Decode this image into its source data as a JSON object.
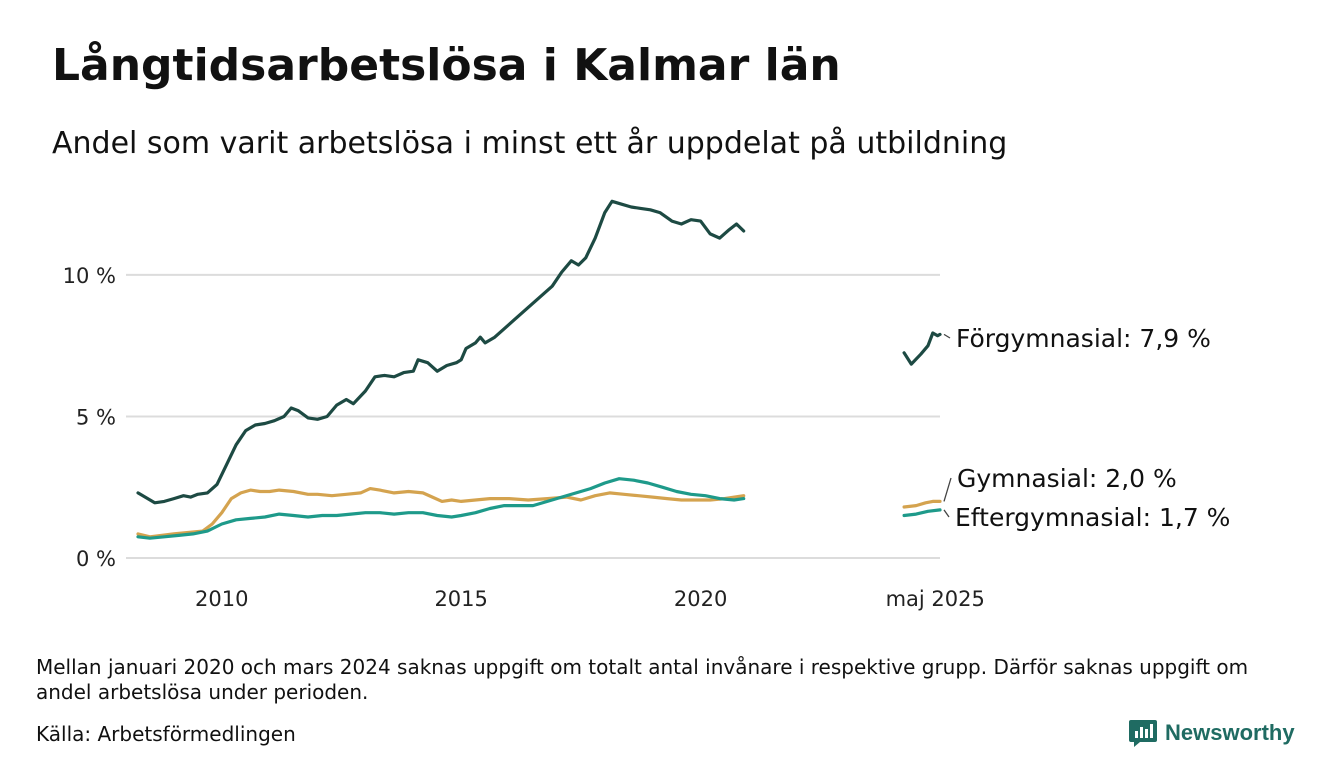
{
  "title": "Långtidsarbetslösa i Kalmar län",
  "subtitle": "Andel som varit arbetslösa i minst ett år uppdelat på utbildning",
  "note": "Mellan januari 2020 och mars 2024 saknas uppgift om totalt antal invånare i respektive grupp. Därför saknas uppgift om andel arbetslösa under perioden.",
  "source": "Källa: Arbetsförmedlingen",
  "brand": {
    "name": "Newsworthy",
    "icon": "bar-chart-speech-bubble-icon",
    "color": "#1f6b62"
  },
  "chart_data": {
    "type": "line",
    "y_ticks": [
      {
        "value": 0,
        "label": "0 %"
      },
      {
        "value": 5,
        "label": "5 %"
      },
      {
        "value": 10,
        "label": "10 %"
      }
    ],
    "x_ticks": [
      {
        "value": 2010,
        "label": "2010"
      },
      {
        "value": 2015,
        "label": "2015"
      },
      {
        "value": 2020,
        "label": "2020"
      },
      {
        "value": 2024.9,
        "label": "maj 2025"
      }
    ],
    "x_range": [
      2008.0,
      2025.0
    ],
    "y_range": [
      0,
      13
    ],
    "grid": "horizontal",
    "legend": "direct-labels-right",
    "series": [
      {
        "key": "forgymnasial",
        "label": "Förgymnasial: 7,9 %",
        "color": "#1d4a43",
        "segments": [
          [
            [
              2008.25,
              2.3
            ],
            [
              2008.4,
              2.15
            ],
            [
              2008.6,
              1.95
            ],
            [
              2008.8,
              2.0
            ],
            [
              2009.0,
              2.1
            ],
            [
              2009.2,
              2.2
            ],
            [
              2009.35,
              2.15
            ],
            [
              2009.5,
              2.25
            ],
            [
              2009.7,
              2.3
            ],
            [
              2009.9,
              2.6
            ],
            [
              2010.1,
              3.3
            ],
            [
              2010.3,
              4.0
            ],
            [
              2010.5,
              4.5
            ],
            [
              2010.7,
              4.7
            ],
            [
              2010.9,
              4.75
            ],
            [
              2011.1,
              4.85
            ],
            [
              2011.3,
              5.0
            ],
            [
              2011.45,
              5.3
            ],
            [
              2011.6,
              5.2
            ],
            [
              2011.8,
              4.95
            ],
            [
              2012.0,
              4.9
            ],
            [
              2012.2,
              5.0
            ],
            [
              2012.4,
              5.4
            ],
            [
              2012.6,
              5.6
            ],
            [
              2012.75,
              5.45
            ],
            [
              2013.0,
              5.9
            ],
            [
              2013.2,
              6.4
            ],
            [
              2013.4,
              6.45
            ],
            [
              2013.6,
              6.4
            ],
            [
              2013.8,
              6.55
            ],
            [
              2014.0,
              6.6
            ],
            [
              2014.1,
              7.0
            ],
            [
              2014.3,
              6.9
            ],
            [
              2014.5,
              6.6
            ],
            [
              2014.7,
              6.8
            ],
            [
              2014.9,
              6.9
            ],
            [
              2015.0,
              7.0
            ],
            [
              2015.1,
              7.4
            ],
            [
              2015.3,
              7.6
            ],
            [
              2015.4,
              7.8
            ],
            [
              2015.5,
              7.6
            ],
            [
              2015.7,
              7.8
            ],
            [
              2015.9,
              8.1
            ],
            [
              2016.1,
              8.4
            ],
            [
              2016.3,
              8.7
            ],
            [
              2016.5,
              9.0
            ],
            [
              2016.7,
              9.3
            ],
            [
              2016.9,
              9.6
            ],
            [
              2017.1,
              10.1
            ],
            [
              2017.3,
              10.5
            ],
            [
              2017.45,
              10.35
            ],
            [
              2017.6,
              10.6
            ],
            [
              2017.8,
              11.3
            ],
            [
              2018.0,
              12.2
            ],
            [
              2018.15,
              12.6
            ],
            [
              2018.35,
              12.5
            ],
            [
              2018.55,
              12.4
            ],
            [
              2018.75,
              12.35
            ],
            [
              2018.95,
              12.3
            ],
            [
              2019.15,
              12.2
            ],
            [
              2019.4,
              11.9
            ],
            [
              2019.6,
              11.8
            ],
            [
              2019.8,
              11.95
            ],
            [
              2020.0,
              11.9
            ],
            [
              2020.2,
              11.45
            ],
            [
              2020.4,
              11.3
            ],
            [
              2020.6,
              11.6
            ],
            [
              2020.75,
              11.8
            ],
            [
              2020.9,
              11.55
            ]
          ],
          [
            [
              2024.25,
              7.25
            ],
            [
              2024.4,
              6.85
            ],
            [
              2024.6,
              7.2
            ],
            [
              2024.75,
              7.5
            ],
            [
              2024.85,
              7.95
            ],
            [
              2024.95,
              7.85
            ],
            [
              2025.0,
              7.9
            ]
          ]
        ]
      },
      {
        "key": "gymnasial",
        "label": "Gymnasial: 2,0 %",
        "color": "#d4a34f",
        "segments": [
          [
            [
              2008.25,
              0.85
            ],
            [
              2008.5,
              0.75
            ],
            [
              2008.75,
              0.8
            ],
            [
              2009.0,
              0.85
            ],
            [
              2009.3,
              0.9
            ],
            [
              2009.6,
              0.95
            ],
            [
              2009.8,
              1.2
            ],
            [
              2010.0,
              1.6
            ],
            [
              2010.2,
              2.1
            ],
            [
              2010.4,
              2.3
            ],
            [
              2010.6,
              2.4
            ],
            [
              2010.8,
              2.35
            ],
            [
              2011.0,
              2.35
            ],
            [
              2011.2,
              2.4
            ],
            [
              2011.5,
              2.35
            ],
            [
              2011.8,
              2.25
            ],
            [
              2012.0,
              2.25
            ],
            [
              2012.3,
              2.2
            ],
            [
              2012.6,
              2.25
            ],
            [
              2012.9,
              2.3
            ],
            [
              2013.1,
              2.45
            ],
            [
              2013.3,
              2.4
            ],
            [
              2013.6,
              2.3
            ],
            [
              2013.9,
              2.35
            ],
            [
              2014.2,
              2.3
            ],
            [
              2014.4,
              2.15
            ],
            [
              2014.6,
              2.0
            ],
            [
              2014.8,
              2.05
            ],
            [
              2015.0,
              2.0
            ],
            [
              2015.3,
              2.05
            ],
            [
              2015.6,
              2.1
            ],
            [
              2016.0,
              2.1
            ],
            [
              2016.4,
              2.05
            ],
            [
              2016.8,
              2.1
            ],
            [
              2017.2,
              2.15
            ],
            [
              2017.5,
              2.05
            ],
            [
              2017.8,
              2.2
            ],
            [
              2018.1,
              2.3
            ],
            [
              2018.4,
              2.25
            ],
            [
              2018.7,
              2.2
            ],
            [
              2019.0,
              2.15
            ],
            [
              2019.3,
              2.1
            ],
            [
              2019.6,
              2.05
            ],
            [
              2019.9,
              2.05
            ],
            [
              2020.2,
              2.05
            ],
            [
              2020.5,
              2.1
            ],
            [
              2020.9,
              2.2
            ]
          ],
          [
            [
              2024.25,
              1.8
            ],
            [
              2024.5,
              1.85
            ],
            [
              2024.7,
              1.95
            ],
            [
              2024.85,
              2.0
            ],
            [
              2025.0,
              2.0
            ]
          ]
        ]
      },
      {
        "key": "eftergymnasial",
        "label": "Eftergymnasial: 1,7 %",
        "color": "#1e9a8a",
        "segments": [
          [
            [
              2008.25,
              0.75
            ],
            [
              2008.5,
              0.7
            ],
            [
              2008.8,
              0.75
            ],
            [
              2009.1,
              0.8
            ],
            [
              2009.4,
              0.85
            ],
            [
              2009.7,
              0.95
            ],
            [
              2010.0,
              1.2
            ],
            [
              2010.3,
              1.35
            ],
            [
              2010.6,
              1.4
            ],
            [
              2010.9,
              1.45
            ],
            [
              2011.2,
              1.55
            ],
            [
              2011.5,
              1.5
            ],
            [
              2011.8,
              1.45
            ],
            [
              2012.1,
              1.5
            ],
            [
              2012.4,
              1.5
            ],
            [
              2012.7,
              1.55
            ],
            [
              2013.0,
              1.6
            ],
            [
              2013.3,
              1.6
            ],
            [
              2013.6,
              1.55
            ],
            [
              2013.9,
              1.6
            ],
            [
              2014.2,
              1.6
            ],
            [
              2014.5,
              1.5
            ],
            [
              2014.8,
              1.45
            ],
            [
              2015.0,
              1.5
            ],
            [
              2015.3,
              1.6
            ],
            [
              2015.6,
              1.75
            ],
            [
              2015.9,
              1.85
            ],
            [
              2016.2,
              1.85
            ],
            [
              2016.5,
              1.85
            ],
            [
              2016.8,
              2.0
            ],
            [
              2017.1,
              2.15
            ],
            [
              2017.4,
              2.3
            ],
            [
              2017.7,
              2.45
            ],
            [
              2018.0,
              2.65
            ],
            [
              2018.3,
              2.8
            ],
            [
              2018.6,
              2.75
            ],
            [
              2018.9,
              2.65
            ],
            [
              2019.2,
              2.5
            ],
            [
              2019.5,
              2.35
            ],
            [
              2019.8,
              2.25
            ],
            [
              2020.1,
              2.2
            ],
            [
              2020.4,
              2.1
            ],
            [
              2020.7,
              2.05
            ],
            [
              2020.9,
              2.1
            ]
          ],
          [
            [
              2024.25,
              1.5
            ],
            [
              2024.5,
              1.55
            ],
            [
              2024.75,
              1.65
            ],
            [
              2025.0,
              1.7
            ]
          ]
        ]
      }
    ]
  }
}
